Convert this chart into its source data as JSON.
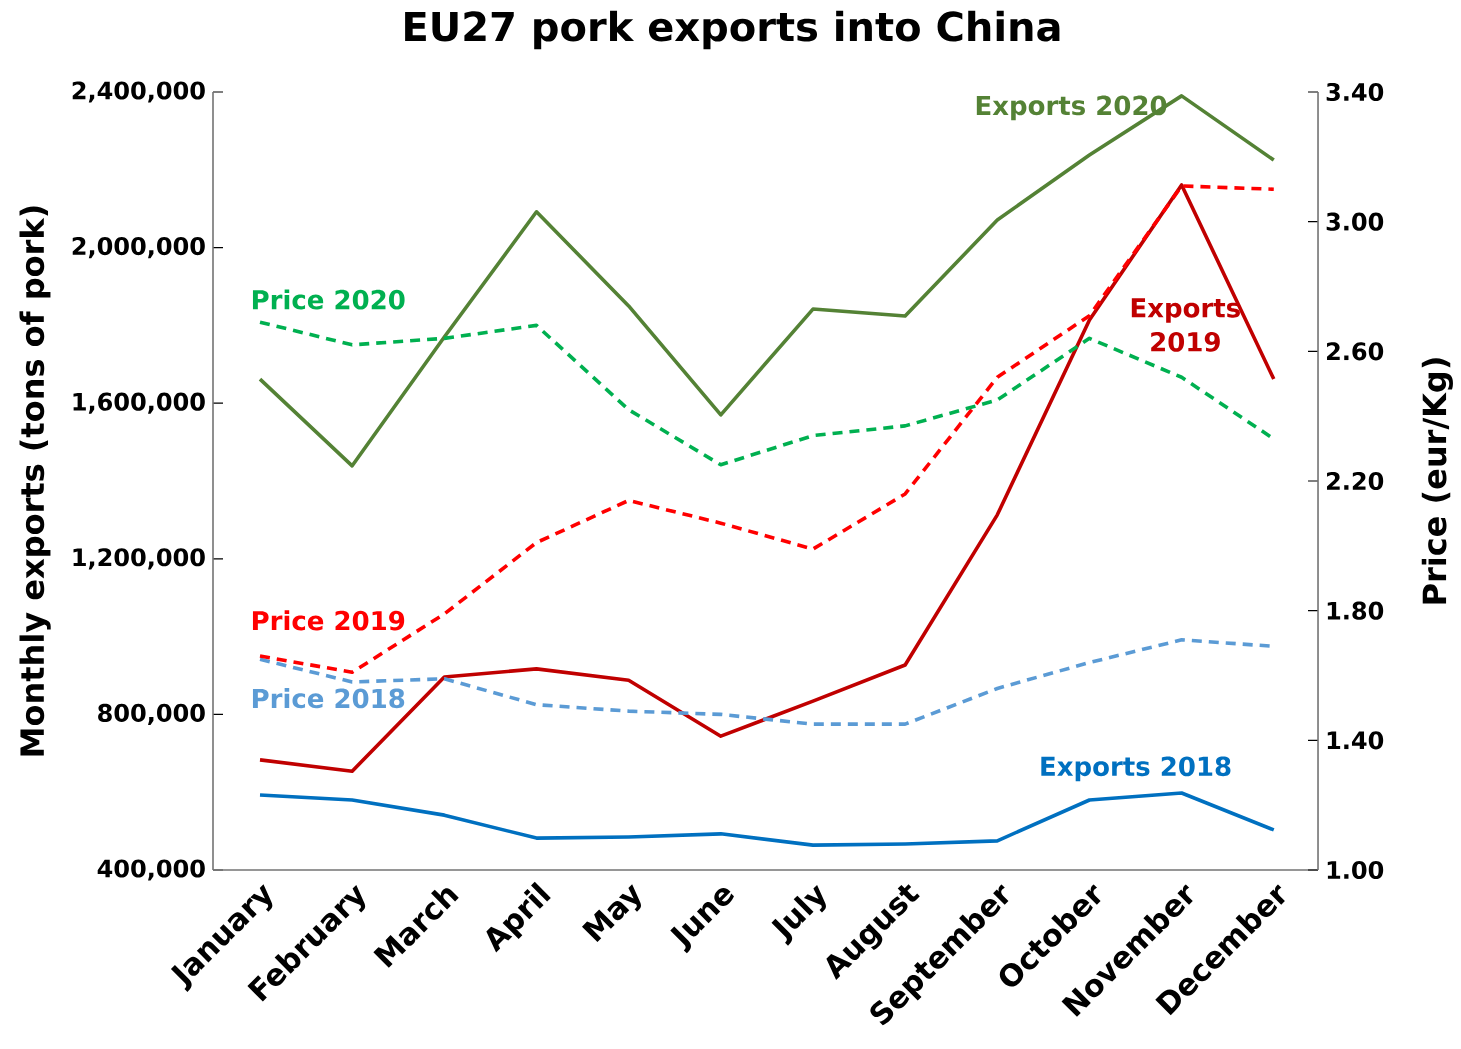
{
  "chart_data": {
    "type": "line",
    "title": "EU27 pork exports into China",
    "categories": [
      "January",
      "February",
      "March",
      "April",
      "May",
      "June",
      "July",
      "August",
      "September",
      "October",
      "November",
      "December"
    ],
    "ylabel": "Monthly exports (tons of pork)",
    "y2label": "Price (eur/Kg)",
    "ylim": [
      400000,
      2400000
    ],
    "yticks": [
      {
        "value": 400000,
        "label": "400,000"
      },
      {
        "value": 800000,
        "label": "800,000"
      },
      {
        "value": 1200000,
        "label": "1,200,000"
      },
      {
        "value": 1600000,
        "label": "1,600,000"
      },
      {
        "value": 2000000,
        "label": "2,000,000"
      },
      {
        "value": 2400000,
        "label": "2,400,000"
      }
    ],
    "y2lim": [
      1,
      3.4
    ],
    "y2ticks": [
      {
        "value": 1,
        "label": "1.00"
      },
      {
        "value": 1.4,
        "label": "1.40"
      },
      {
        "value": 1.8,
        "label": "1.80"
      },
      {
        "value": 2.2,
        "label": "2.20"
      },
      {
        "value": 2.6,
        "label": "2.60"
      },
      {
        "value": 3.0,
        "label": "3.00"
      },
      {
        "value": 3.4,
        "label": "3.40"
      }
    ],
    "grid": false,
    "legend": false,
    "marker": "none",
    "series": [
      {
        "name": "Exports 2018",
        "color": "#0070c0",
        "line_style": "solid",
        "values": [
          593000,
          580000,
          541000,
          482000,
          485000,
          493000,
          464000,
          467000,
          475000,
          580000,
          598000,
          503000
        ]
      },
      {
        "name": "Exports 2019",
        "color": "#c00000",
        "line_style": "solid",
        "values": [
          683000,
          654000,
          896000,
          917000,
          888000,
          744000,
          834000,
          927000,
          1313000,
          1814000,
          2161000,
          1662000
        ]
      },
      {
        "name": "Exports 2020",
        "color": "#548235",
        "line_style": "solid",
        "values": [
          1662000,
          1439000,
          1770000,
          2092000,
          1850000,
          1570000,
          1842000,
          1824000,
          2071000,
          2238000,
          2390000,
          2225000
        ]
      },
      {
        "name": "Price 2018",
        "color": "#5b9bd5",
        "line_style": "dashed",
        "axis": "y2",
        "values": [
          1.65,
          1.58,
          1.59,
          1.51,
          1.49,
          1.48,
          1.45,
          1.45,
          1.56,
          1.64,
          1.71,
          1.69
        ]
      },
      {
        "name": "Price 2019",
        "color": "#ff0000",
        "line_style": "dashed",
        "axis": "y2",
        "values": [
          1.66,
          1.61,
          1.79,
          2.01,
          2.14,
          2.07,
          1.99,
          2.16,
          2.52,
          2.71,
          3.11,
          3.1
        ]
      },
      {
        "name": "Price 2020",
        "color": "#00b050",
        "line_style": "dashed",
        "axis": "y2",
        "values": [
          2.69,
          2.62,
          2.64,
          2.68,
          2.42,
          2.25,
          2.34,
          2.37,
          2.45,
          2.64,
          2.52,
          2.33
        ]
      }
    ]
  }
}
